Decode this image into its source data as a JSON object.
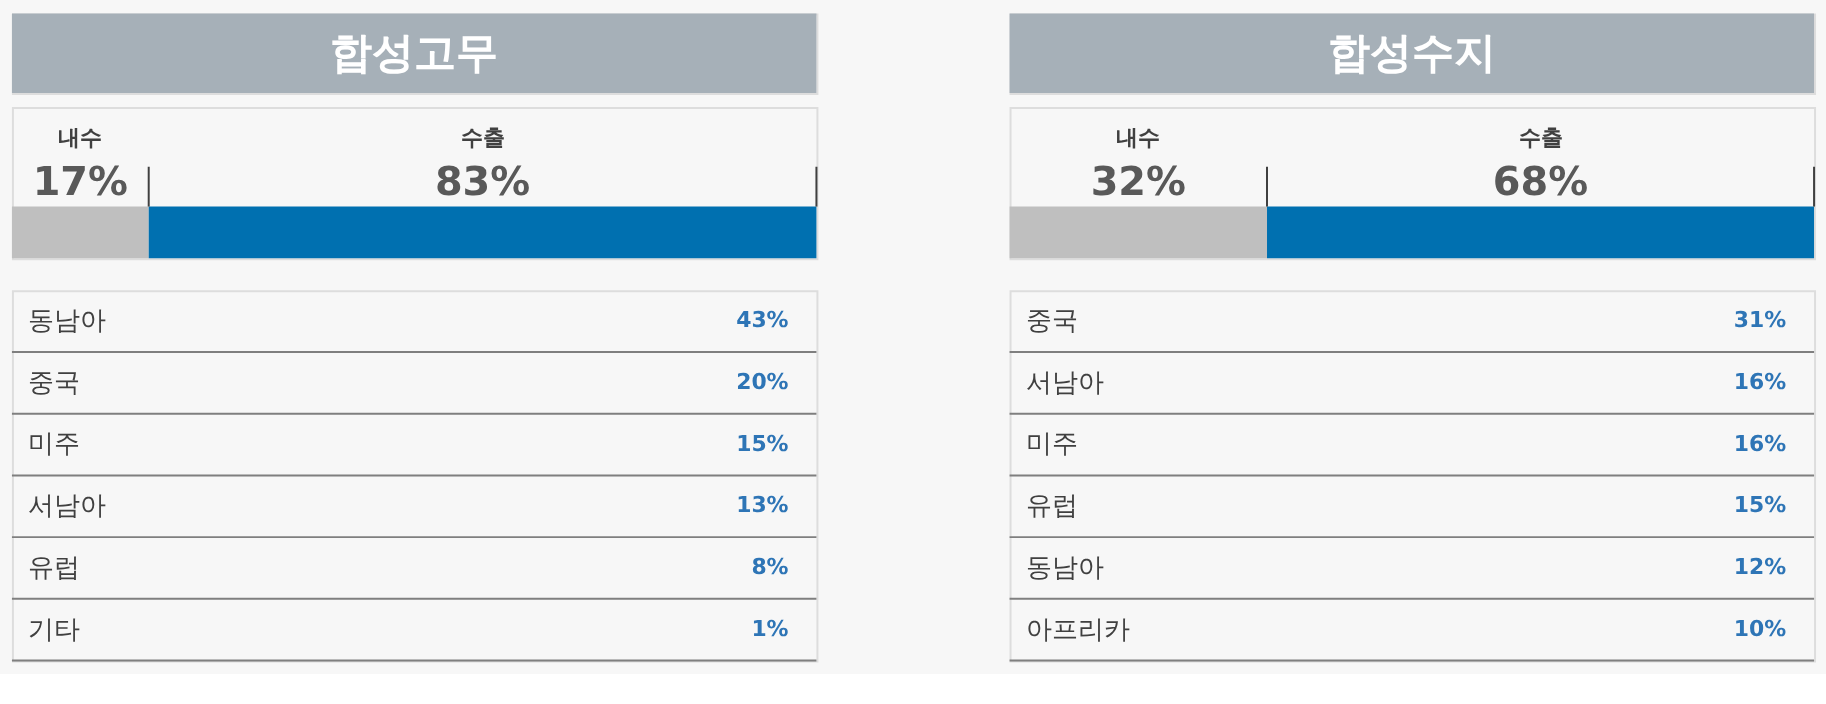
{
  "chart_data": [
    {
      "type": "bar",
      "title": "합성고무",
      "stacked": true,
      "orientation": "horizontal",
      "categories": [
        null
      ],
      "series": [
        {
          "name": "내수",
          "color": "#bfbfbf",
          "values": [
            17
          ],
          "value_labels": [
            "17%"
          ]
        },
        {
          "name": "수출",
          "color": "#0070b0",
          "values": [
            83
          ],
          "value_labels": [
            "83%"
          ]
        }
      ]
    },
    {
      "type": "other",
      "categories": [
        "동남아",
        "중국",
        "미주",
        "서남아",
        "유럽",
        "기타"
      ],
      "value_labels": [
        "43%",
        "20%",
        "15%",
        "13%",
        "8%",
        "1%"
      ],
      "color": "#2e75b6"
    },
    {
      "type": "bar",
      "title": "합성수지",
      "stacked": true,
      "orientation": "horizontal",
      "categories": [
        null
      ],
      "series": [
        {
          "name": "내수",
          "color": "#bfbfbf",
          "values": [
            32
          ],
          "value_labels": [
            "32%"
          ]
        },
        {
          "name": "수출",
          "color": "#0070b0",
          "values": [
            68
          ],
          "value_labels": [
            "68%"
          ]
        }
      ]
    },
    {
      "type": "other",
      "categories": [
        "중국",
        "서남아",
        "미주",
        "유럽",
        "동남아",
        "아프리카"
      ],
      "value_labels": [
        "31%",
        "16%",
        "16%",
        "15%",
        "12%",
        "10%"
      ],
      "color": "#2e75b6"
    }
  ]
}
